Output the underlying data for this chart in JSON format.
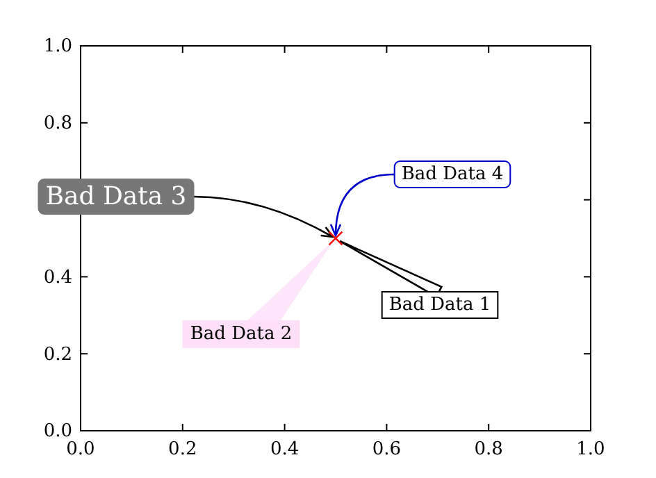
{
  "chart_data": {
    "type": "scatter",
    "x": [
      0.5
    ],
    "series": [
      {
        "color": "#ff0000",
        "values": [
          0.5
        ]
      }
    ],
    "marker": "cross",
    "xlim": [
      0,
      1
    ],
    "ylim": [
      0,
      1
    ],
    "xticks": [
      {
        "value": 0,
        "label": "0.0"
      },
      {
        "value": 0.2,
        "label": "0.2"
      },
      {
        "value": 0.4,
        "label": "0.4"
      },
      {
        "value": 0.6,
        "label": "0.6"
      },
      {
        "value": 0.8,
        "label": "0.8"
      },
      {
        "value": 1,
        "label": "1.0"
      }
    ],
    "yticks": [
      {
        "value": 0,
        "label": "0.0"
      },
      {
        "value": 0.2,
        "label": "0.2"
      },
      {
        "value": 0.4,
        "label": "0.4"
      },
      {
        "value": 0.6,
        "label": null
      },
      {
        "value": 0.8,
        "label": "0.8"
      },
      {
        "value": 1,
        "label": "1.0"
      }
    ],
    "grid": false,
    "annotations": [
      "Bad Data 1",
      "Bad Data 2",
      {
        "text": "Bad Data 3",
        "x": 0.5,
        "y": 0.5
      },
      {
        "text": "Bad Data 4",
        "x": 0.5,
        "y": 0.5
      }
    ]
  }
}
